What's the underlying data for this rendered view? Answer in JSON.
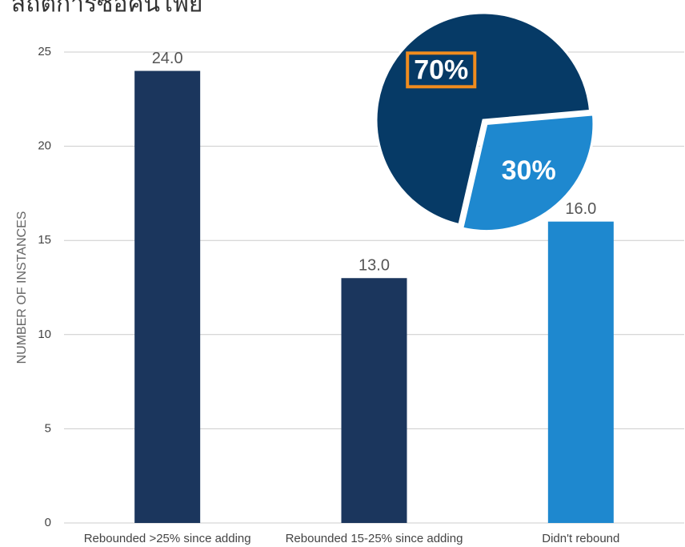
{
  "chart_data": [
    {
      "type": "bar",
      "title": "สถิติการซื้อคืนโพย",
      "ylabel": "NUMBER OF INSTANCES",
      "categories": [
        "Rebounded >25% since adding",
        "Rebounded 15-25% since adding",
        "Didn't rebound"
      ],
      "values": [
        24,
        13,
        16
      ],
      "value_labels": [
        "24.0",
        "13.0",
        "16.0"
      ],
      "colors": [
        "#1b365d",
        "#1b365d",
        "#1e88cf"
      ],
      "ylim": [
        0,
        25
      ],
      "yticks": [
        0,
        5,
        10,
        15,
        20,
        25
      ],
      "grid": true
    },
    {
      "type": "pie",
      "values": [
        70,
        30
      ],
      "value_labels": [
        "70%",
        "30%"
      ],
      "colors": [
        "#063a66",
        "#1e88cf"
      ],
      "highlight": 0
    }
  ]
}
